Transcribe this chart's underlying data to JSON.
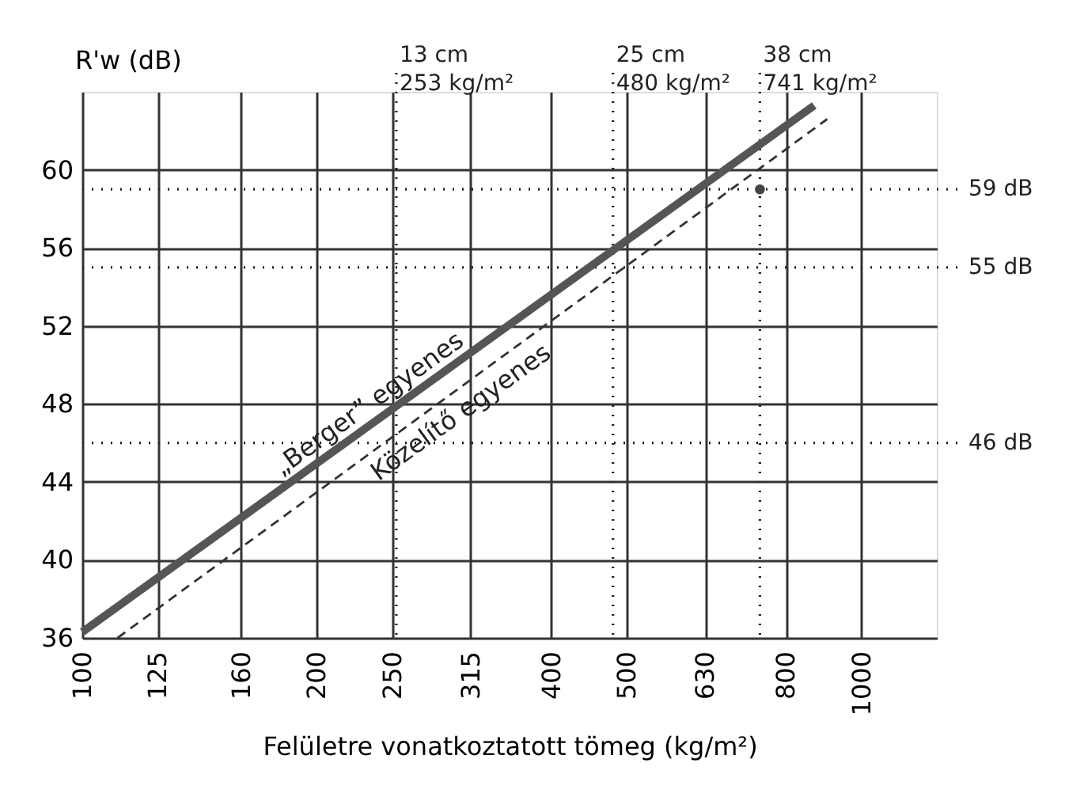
{
  "chart_data": {
    "type": "line",
    "xlabel": "Felületre vonatkoztatott tömeg (kg/m²)",
    "ylabel": "R'w (dB)",
    "log": "x",
    "xlim": [
      100,
      1250
    ],
    "xticks": [
      100,
      125,
      160,
      200,
      250,
      315,
      400,
      500,
      630,
      800,
      1000
    ],
    "ylim": [
      36,
      64
    ],
    "yticks": [
      36,
      40,
      44,
      48,
      52,
      56,
      60
    ],
    "grid": true,
    "series": [
      {
        "color": "#555555",
        "line_style": "solid",
        "x": [
          100,
          870
        ],
        "values": [
          36.3,
          63.3
        ]
      },
      {
        "color": "#333333",
        "line_style": "dashed",
        "x": [
          111,
          904
        ],
        "values": [
          36,
          62.6
        ]
      },
      {
        "type": "scatter",
        "color": "#444444",
        "marker": "circle",
        "x": [
          741
        ],
        "values": [
          59
        ]
      }
    ],
    "ref_lines": [
      {
        "axis": "x",
        "value": 253,
        "label": "13 cm\n253 kg/m²",
        "line_style": "dotted"
      },
      {
        "axis": "x",
        "value": 480,
        "label": "25 cm\n480 kg/m²",
        "line_style": "dotted"
      },
      {
        "axis": "x",
        "value": 741,
        "label": "38 cm\n741 kg/m²",
        "line_style": "dotted"
      },
      {
        "axis": "y",
        "value": 59,
        "label": "59 dB",
        "line_style": "dotted"
      },
      {
        "axis": "y",
        "value": 55,
        "label": "55 dB",
        "line_style": "dotted"
      },
      {
        "axis": "y",
        "value": 46,
        "label": "46 dB",
        "line_style": "dotted"
      }
    ],
    "annotations": [
      "„Berger” egyenes",
      "Közelítő egyenes"
    ]
  }
}
